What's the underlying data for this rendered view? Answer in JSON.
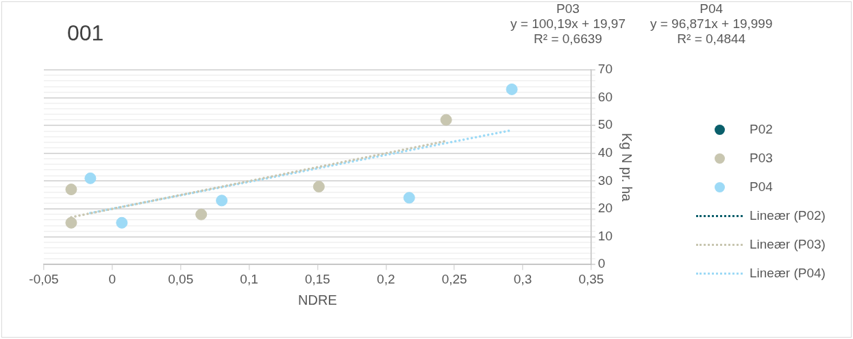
{
  "chart_data": {
    "type": "scatter",
    "title": "001",
    "xlabel": "NDRE",
    "ylabel": "Kg N pr. ha",
    "annotations": [
      "P03\ny = 100,19x + 19,97\nR² = 0,6639",
      "P04\ny = 96,871x + 19,999\nR² = 0,4844"
    ],
    "xlim": [
      -0.05,
      0.35
    ],
    "xticks": [
      {
        "value": -0.05,
        "label": "-0,05"
      },
      0,
      {
        "value": 0.05,
        "label": "0,05"
      },
      {
        "value": 0.1,
        "label": "0,1"
      },
      {
        "value": 0.15,
        "label": "0,15"
      },
      {
        "value": 0.2,
        "label": "0,2"
      },
      {
        "value": 0.25,
        "label": "0,25"
      },
      {
        "value": 0.3,
        "label": "0,3"
      },
      {
        "value": 0.35,
        "label": "0,35"
      }
    ],
    "ylim": [
      0,
      70
    ],
    "yticks": [
      0,
      {
        "value": 2,
        "label": null
      },
      {
        "value": 4,
        "label": null
      },
      {
        "value": 6,
        "label": null
      },
      {
        "value": 8,
        "label": null
      },
      10,
      {
        "value": 12,
        "label": null
      },
      {
        "value": 14,
        "label": null
      },
      {
        "value": 16,
        "label": null
      },
      {
        "value": 18,
        "label": null
      },
      20,
      {
        "value": 22,
        "label": null
      },
      {
        "value": 24,
        "label": null
      },
      {
        "value": 26,
        "label": null
      },
      {
        "value": 28,
        "label": null
      },
      30,
      {
        "value": 32,
        "label": null
      },
      {
        "value": 34,
        "label": null
      },
      {
        "value": 36,
        "label": null
      },
      {
        "value": 38,
        "label": null
      },
      40,
      {
        "value": 42,
        "label": null
      },
      {
        "value": 44,
        "label": null
      },
      {
        "value": 46,
        "label": null
      },
      {
        "value": 48,
        "label": null
      },
      50,
      {
        "value": 52,
        "label": null
      },
      {
        "value": 54,
        "label": null
      },
      {
        "value": 56,
        "label": null
      },
      {
        "value": 58,
        "label": null
      },
      60,
      {
        "value": 62,
        "label": null
      },
      {
        "value": 64,
        "label": null
      },
      {
        "value": 66,
        "label": null
      },
      {
        "value": 68,
        "label": null
      },
      70
    ],
    "grid": "y",
    "legend": "right",
    "marker": "circle",
    "series": [
      {
        "name": "P02",
        "color": "#0a5f6b"
      },
      {
        "name": "P03",
        "color": "#c8c6b0",
        "x": [
          -0.03,
          -0.03,
          0.065,
          0.151,
          0.244
        ],
        "values": [
          15,
          27,
          18,
          28,
          52
        ]
      },
      {
        "name": "P04",
        "color": "#9ddaf6",
        "x": [
          -0.016,
          0.007,
          0.08,
          0.217,
          0.292
        ],
        "values": [
          31,
          15,
          23,
          24,
          63
        ]
      },
      {
        "name": "Lineær (P02)",
        "type": "line",
        "color": "#0a5f6b",
        "marker": "none",
        "line_style": "dotted"
      },
      {
        "name": "Lineær (P03)",
        "type": "line",
        "color": "#c8c6b0",
        "marker": "none",
        "line_style": "dotted",
        "x": [
          -0.03,
          0.244
        ],
        "values": [
          17,
          44.4
        ]
      },
      {
        "name": "Lineær (P04)",
        "type": "line",
        "color": "#9ddaf6",
        "marker": "none",
        "line_style": "dotted",
        "x": [
          -0.016,
          0.292
        ],
        "values": [
          18.5,
          48.3
        ]
      }
    ]
  }
}
